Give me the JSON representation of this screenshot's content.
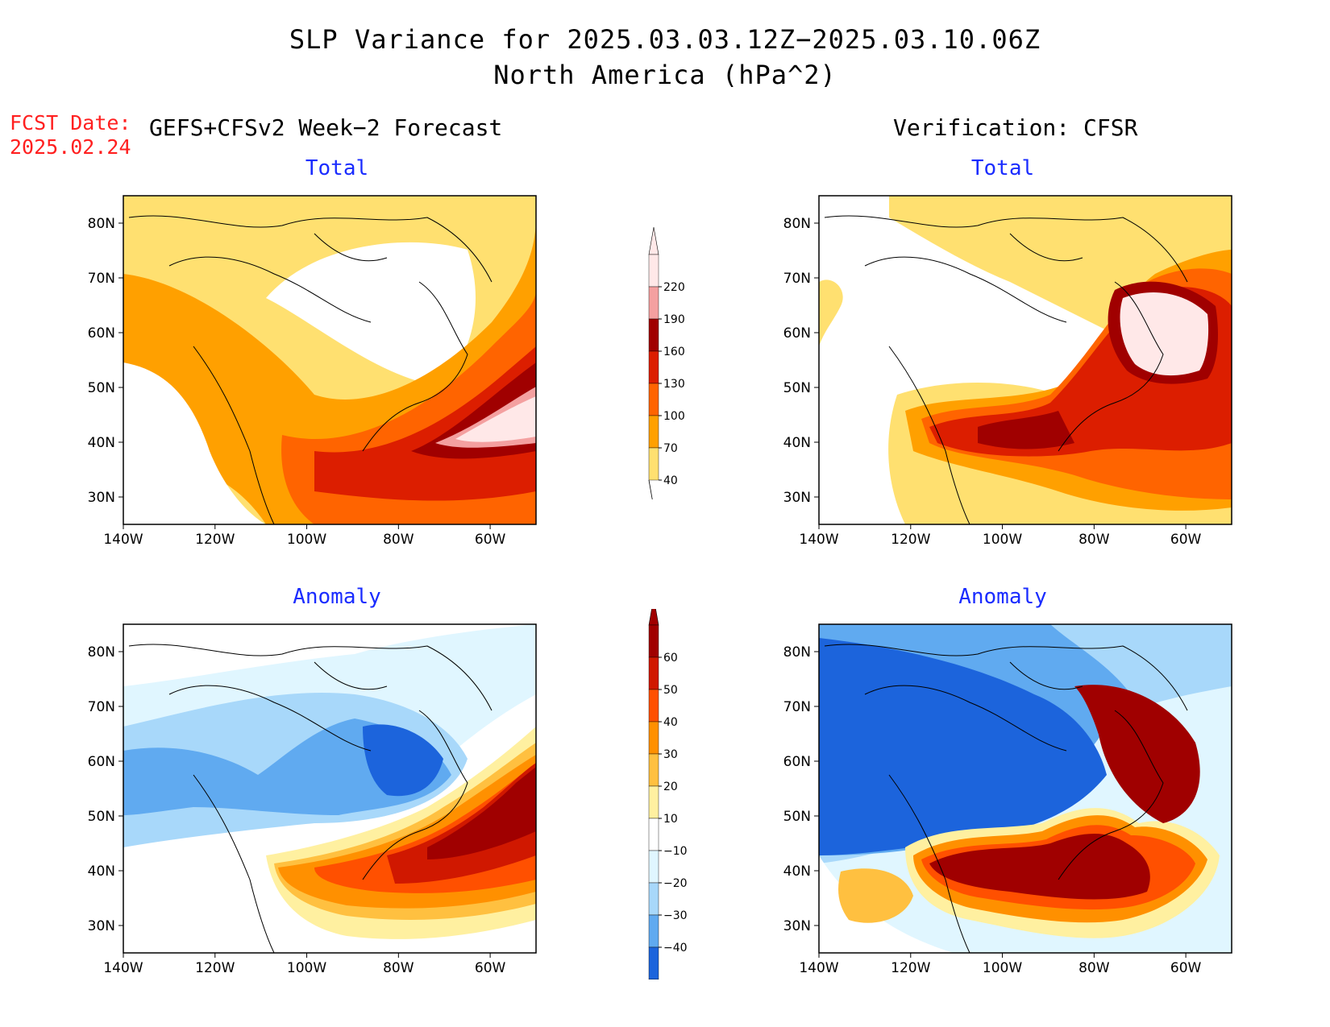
{
  "header": {
    "title_line1": "SLP Variance for 2025.03.03.12Z−2025.03.10.06Z",
    "title_line2": "North America (hPa^2)",
    "fcst_date_label": "FCST Date:",
    "fcst_date_value": "2025.02.24",
    "left_heading": "GEFS+CFSv2 Week−2 Forecast",
    "right_heading": "Verification: CFSR"
  },
  "panels": {
    "top_left": {
      "subtitle": "Total"
    },
    "top_right": {
      "subtitle": "Total"
    },
    "bottom_left": {
      "subtitle": "Anomaly"
    },
    "bottom_right": {
      "subtitle": "Anomaly"
    }
  },
  "axes": {
    "lat_labels": [
      "80N",
      "70N",
      "60N",
      "50N",
      "40N",
      "30N"
    ],
    "lat_values": [
      80,
      70,
      60,
      50,
      40,
      30
    ],
    "lon_labels": [
      "140W",
      "120W",
      "100W",
      "80W",
      "60W"
    ],
    "lon_values": [
      -140,
      -120,
      -100,
      -80,
      -60
    ],
    "lon_range": [
      -140,
      -50
    ],
    "lat_range": [
      25,
      85
    ]
  },
  "colorbars": {
    "total": {
      "labels": [
        "220",
        "190",
        "160",
        "130",
        "100",
        "70",
        "40"
      ],
      "colors": [
        "#ffe8e8",
        "#f4a0a0",
        "#a00000",
        "#dc1e00",
        "#ff6400",
        "#ffa000",
        "#ffe070"
      ]
    },
    "anomaly": {
      "labels": [
        "60",
        "50",
        "40",
        "30",
        "20",
        "10",
        "−10",
        "−20",
        "−30",
        "−40"
      ],
      "colors": [
        "#a00000",
        "#d01800",
        "#ff5000",
        "#ff9000",
        "#ffc040",
        "#fff0a0",
        "#ffffff",
        "#e0f6ff",
        "#a8d8fa",
        "#60aaf0",
        "#1c64dc"
      ]
    }
  }
}
